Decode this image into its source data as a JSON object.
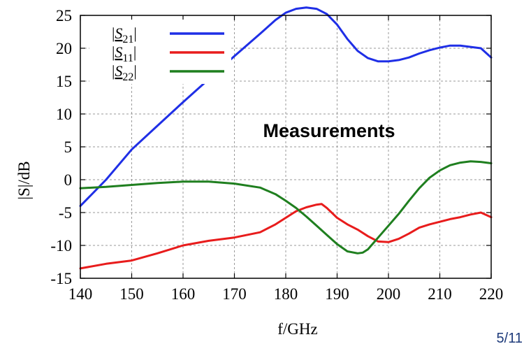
{
  "chart_data": {
    "type": "line",
    "xlabel": "f/GHz",
    "ylabel": "|S|/dB",
    "xlim": [
      140,
      220
    ],
    "ylim": [
      -15,
      25
    ],
    "xticks": [
      140,
      150,
      160,
      170,
      180,
      190,
      200,
      210,
      220
    ],
    "yticks": [
      -15,
      -10,
      -5,
      0,
      5,
      10,
      15,
      20,
      25
    ],
    "grid": true,
    "legend_position": "top-left",
    "annotation": "Measurements",
    "series": [
      {
        "name": "|S21|",
        "label_main": "S",
        "label_sub": "21",
        "color": "#1f2fe6",
        "x": [
          140,
          145,
          150,
          155,
          160,
          165,
          170,
          175,
          178,
          180,
          182,
          184,
          186,
          188,
          190,
          192,
          194,
          196,
          198,
          200,
          202,
          204,
          206,
          208,
          210,
          212,
          214,
          216,
          218,
          220
        ],
        "y": [
          -4,
          0,
          4.6,
          8.2,
          11.8,
          15.3,
          18.8,
          22.2,
          24.3,
          25.4,
          26.0,
          26.2,
          26.0,
          25.2,
          23.6,
          21.4,
          19.6,
          18.5,
          18.0,
          18.0,
          18.2,
          18.6,
          19.2,
          19.7,
          20.1,
          20.4,
          20.4,
          20.2,
          20.0,
          18.6
        ]
      },
      {
        "name": "|S11|",
        "label_main": "S",
        "label_sub": "11",
        "color": "#e81c1c",
        "x": [
          140,
          145,
          150,
          155,
          160,
          165,
          170,
          175,
          178,
          180,
          182,
          184,
          186,
          187,
          188,
          190,
          192,
          194,
          196,
          198,
          200,
          202,
          204,
          206,
          208,
          210,
          212,
          214,
          216,
          218,
          220
        ],
        "y": [
          -13.5,
          -12.8,
          -12.3,
          -11.2,
          -10.0,
          -9.3,
          -8.8,
          -8.0,
          -6.8,
          -5.8,
          -4.8,
          -4.2,
          -3.8,
          -3.7,
          -4.3,
          -5.8,
          -6.8,
          -7.6,
          -8.6,
          -9.4,
          -9.5,
          -9.0,
          -8.2,
          -7.3,
          -6.8,
          -6.4,
          -6.0,
          -5.7,
          -5.3,
          -5.0,
          -5.7
        ]
      },
      {
        "name": "|S22|",
        "label_main": "S",
        "label_sub": "22",
        "color": "#1f7f1f",
        "x": [
          140,
          145,
          150,
          155,
          160,
          165,
          170,
          175,
          178,
          180,
          182,
          184,
          186,
          188,
          190,
          192,
          194,
          195,
          196,
          198,
          200,
          202,
          204,
          206,
          208,
          210,
          212,
          214,
          216,
          218,
          220
        ],
        "y": [
          -1.3,
          -1.1,
          -0.8,
          -0.5,
          -0.3,
          -0.3,
          -0.6,
          -1.2,
          -2.2,
          -3.2,
          -4.3,
          -5.6,
          -7.0,
          -8.4,
          -9.8,
          -10.9,
          -11.2,
          -11.1,
          -10.6,
          -8.8,
          -7.0,
          -5.2,
          -3.2,
          -1.3,
          0.3,
          1.4,
          2.2,
          2.6,
          2.8,
          2.7,
          2.5
        ]
      }
    ]
  },
  "page_number": "5/11"
}
